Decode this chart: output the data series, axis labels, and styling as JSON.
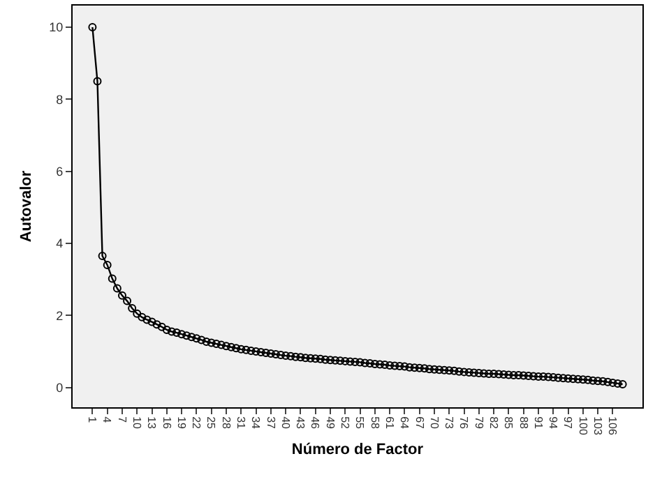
{
  "chart_data": {
    "type": "line",
    "xlabel": "Número de Factor",
    "ylabel": "Autovalor",
    "x": [
      1,
      2,
      3,
      4,
      5,
      6,
      7,
      8,
      9,
      10,
      11,
      12,
      13,
      14,
      15,
      16,
      17,
      18,
      19,
      20,
      21,
      22,
      23,
      24,
      25,
      26,
      27,
      28,
      29,
      30,
      31,
      32,
      33,
      34,
      35,
      36,
      37,
      38,
      39,
      40,
      41,
      42,
      43,
      44,
      45,
      46,
      47,
      48,
      49,
      50,
      51,
      52,
      53,
      54,
      55,
      56,
      57,
      58,
      59,
      60,
      61,
      62,
      63,
      64,
      65,
      66,
      67,
      68,
      69,
      70,
      71,
      72,
      73,
      74,
      75,
      76,
      77,
      78,
      79,
      80,
      81,
      82,
      83,
      84,
      85,
      86,
      87,
      88,
      89,
      90,
      91,
      92,
      93,
      94,
      95,
      96,
      97,
      98,
      99,
      100,
      101,
      102,
      103,
      104,
      105,
      106,
      107,
      108
    ],
    "series": [
      {
        "color": "#000000",
        "values": [
          10.0,
          8.5,
          3.65,
          3.4,
          3.02,
          2.75,
          2.55,
          2.4,
          2.2,
          2.05,
          1.95,
          1.88,
          1.82,
          1.75,
          1.68,
          1.6,
          1.55,
          1.52,
          1.48,
          1.44,
          1.4,
          1.36,
          1.32,
          1.27,
          1.24,
          1.21,
          1.18,
          1.15,
          1.12,
          1.09,
          1.06,
          1.04,
          1.02,
          1.0,
          0.98,
          0.96,
          0.94,
          0.92,
          0.9,
          0.88,
          0.87,
          0.85,
          0.84,
          0.82,
          0.81,
          0.8,
          0.79,
          0.77,
          0.76,
          0.75,
          0.74,
          0.73,
          0.72,
          0.71,
          0.7,
          0.68,
          0.67,
          0.65,
          0.64,
          0.63,
          0.61,
          0.6,
          0.59,
          0.58,
          0.56,
          0.55,
          0.54,
          0.53,
          0.51,
          0.5,
          0.49,
          0.48,
          0.47,
          0.46,
          0.44,
          0.43,
          0.42,
          0.41,
          0.4,
          0.39,
          0.38,
          0.38,
          0.37,
          0.36,
          0.35,
          0.34,
          0.34,
          0.33,
          0.32,
          0.31,
          0.3,
          0.3,
          0.29,
          0.28,
          0.27,
          0.26,
          0.25,
          0.24,
          0.23,
          0.22,
          0.21,
          0.19,
          0.18,
          0.17,
          0.15,
          0.13,
          0.11,
          0.09
        ]
      }
    ],
    "xlim": [
      -3,
      112
    ],
    "xticks": [
      1,
      4,
      7,
      10,
      13,
      16,
      19,
      22,
      25,
      28,
      31,
      34,
      37,
      40,
      43,
      46,
      49,
      52,
      55,
      58,
      61,
      64,
      67,
      70,
      73,
      76,
      79,
      82,
      85,
      88,
      91,
      94,
      97,
      100,
      103,
      106
    ],
    "ylim": [
      -0.55,
      10.6
    ],
    "yticks": [
      0,
      2,
      4,
      6,
      8,
      10
    ],
    "marker": "circle",
    "line_style": "solid",
    "grid": false
  }
}
